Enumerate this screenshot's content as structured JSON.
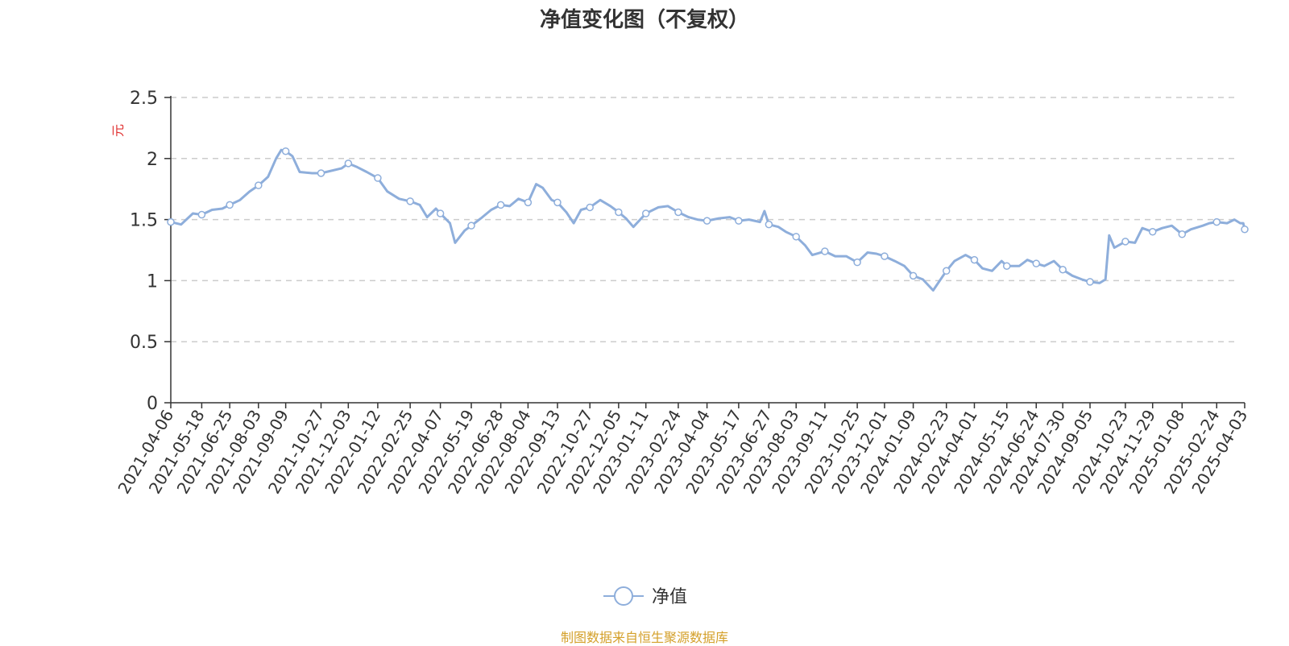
{
  "chart_data": {
    "type": "line",
    "title": "净值变化图（不复权）",
    "ylabel": "元",
    "ylim": [
      0,
      2.5
    ],
    "yticks": [
      "0",
      "0.5",
      "1",
      "1.5",
      "2",
      "2.5"
    ],
    "grid": true,
    "legend_position": "bottom-center",
    "x_start": "2021-04-06",
    "x_end": "2025-04-03",
    "xtick_labels": [
      "2021-04-06",
      "2021-05-18",
      "2021-06-25",
      "2021-08-03",
      "2021-09-09",
      "2021-10-27",
      "2021-12-03",
      "2022-01-12",
      "2022-02-25",
      "2022-04-07",
      "2022-05-19",
      "2022-06-28",
      "2022-08-04",
      "2022-09-13",
      "2022-10-27",
      "2022-12-05",
      "2023-01-11",
      "2023-02-24",
      "2023-04-04",
      "2023-05-17",
      "2023-06-27",
      "2023-08-03",
      "2023-09-11",
      "2023-10-25",
      "2023-12-01",
      "2024-01-09",
      "2024-02-23",
      "2024-04-01",
      "2024-05-15",
      "2024-06-24",
      "2024-07-30",
      "2024-09-05",
      "2024-10-23",
      "2024-11-29",
      "2025-01-08",
      "2025-02-24",
      "2025-04-03"
    ],
    "series": [
      {
        "name": "净值",
        "color": "#8eaedb",
        "points": [
          [
            "2021-04-06",
            1.48
          ],
          [
            "2021-04-20",
            1.46
          ],
          [
            "2021-05-06",
            1.55
          ],
          [
            "2021-05-18",
            1.54
          ],
          [
            "2021-06-01",
            1.58
          ],
          [
            "2021-06-15",
            1.59
          ],
          [
            "2021-06-25",
            1.62
          ],
          [
            "2021-07-09",
            1.66
          ],
          [
            "2021-07-22",
            1.73
          ],
          [
            "2021-08-03",
            1.78
          ],
          [
            "2021-08-16",
            1.85
          ],
          [
            "2021-08-27",
            2.0
          ],
          [
            "2021-09-03",
            2.07
          ],
          [
            "2021-09-09",
            2.06
          ],
          [
            "2021-09-18",
            2.02
          ],
          [
            "2021-09-28",
            1.89
          ],
          [
            "2021-10-15",
            1.88
          ],
          [
            "2021-10-27",
            1.88
          ],
          [
            "2021-11-10",
            1.9
          ],
          [
            "2021-11-24",
            1.92
          ],
          [
            "2021-12-03",
            1.96
          ],
          [
            "2021-12-15",
            1.93
          ],
          [
            "2021-12-28",
            1.89
          ],
          [
            "2022-01-12",
            1.84
          ],
          [
            "2022-01-25",
            1.73
          ],
          [
            "2022-02-10",
            1.67
          ],
          [
            "2022-02-25",
            1.65
          ],
          [
            "2022-03-10",
            1.62
          ],
          [
            "2022-03-20",
            1.52
          ],
          [
            "2022-04-01",
            1.59
          ],
          [
            "2022-04-07",
            1.55
          ],
          [
            "2022-04-20",
            1.47
          ],
          [
            "2022-04-27",
            1.31
          ],
          [
            "2022-05-10",
            1.41
          ],
          [
            "2022-05-19",
            1.45
          ],
          [
            "2022-06-01",
            1.51
          ],
          [
            "2022-06-15",
            1.58
          ],
          [
            "2022-06-28",
            1.62
          ],
          [
            "2022-07-10",
            1.61
          ],
          [
            "2022-07-22",
            1.67
          ],
          [
            "2022-08-04",
            1.64
          ],
          [
            "2022-08-15",
            1.79
          ],
          [
            "2022-08-24",
            1.76
          ],
          [
            "2022-09-05",
            1.66
          ],
          [
            "2022-09-13",
            1.64
          ],
          [
            "2022-09-25",
            1.56
          ],
          [
            "2022-10-05",
            1.47
          ],
          [
            "2022-10-15",
            1.58
          ],
          [
            "2022-10-27",
            1.6
          ],
          [
            "2022-11-10",
            1.66
          ],
          [
            "2022-11-24",
            1.61
          ],
          [
            "2022-12-05",
            1.56
          ],
          [
            "2022-12-15",
            1.51
          ],
          [
            "2022-12-25",
            1.44
          ],
          [
            "2023-01-11",
            1.55
          ],
          [
            "2023-01-28",
            1.6
          ],
          [
            "2023-02-10",
            1.61
          ],
          [
            "2023-02-24",
            1.56
          ],
          [
            "2023-03-10",
            1.52
          ],
          [
            "2023-03-22",
            1.5
          ],
          [
            "2023-04-04",
            1.49
          ],
          [
            "2023-04-20",
            1.51
          ],
          [
            "2023-05-05",
            1.52
          ],
          [
            "2023-05-17",
            1.49
          ],
          [
            "2023-05-31",
            1.5
          ],
          [
            "2023-06-15",
            1.48
          ],
          [
            "2023-06-21",
            1.57
          ],
          [
            "2023-06-27",
            1.46
          ],
          [
            "2023-07-10",
            1.44
          ],
          [
            "2023-07-20",
            1.4
          ],
          [
            "2023-08-03",
            1.36
          ],
          [
            "2023-08-15",
            1.29
          ],
          [
            "2023-08-25",
            1.21
          ],
          [
            "2023-09-11",
            1.24
          ],
          [
            "2023-09-25",
            1.2
          ],
          [
            "2023-10-10",
            1.2
          ],
          [
            "2023-10-25",
            1.15
          ],
          [
            "2023-11-08",
            1.23
          ],
          [
            "2023-11-20",
            1.22
          ],
          [
            "2023-12-01",
            1.2
          ],
          [
            "2023-12-15",
            1.16
          ],
          [
            "2023-12-28",
            1.12
          ],
          [
            "2024-01-09",
            1.04
          ],
          [
            "2024-01-22",
            1.01
          ],
          [
            "2024-02-05",
            0.92
          ],
          [
            "2024-02-23",
            1.08
          ],
          [
            "2024-03-05",
            1.16
          ],
          [
            "2024-03-20",
            1.21
          ],
          [
            "2024-04-01",
            1.17
          ],
          [
            "2024-04-12",
            1.1
          ],
          [
            "2024-04-25",
            1.08
          ],
          [
            "2024-05-08",
            1.16
          ],
          [
            "2024-05-15",
            1.12
          ],
          [
            "2024-06-01",
            1.12
          ],
          [
            "2024-06-12",
            1.17
          ],
          [
            "2024-06-24",
            1.14
          ],
          [
            "2024-07-05",
            1.12
          ],
          [
            "2024-07-18",
            1.16
          ],
          [
            "2024-07-30",
            1.09
          ],
          [
            "2024-08-12",
            1.04
          ],
          [
            "2024-08-25",
            1.01
          ],
          [
            "2024-09-05",
            0.99
          ],
          [
            "2024-09-18",
            0.98
          ],
          [
            "2024-09-26",
            1.01
          ],
          [
            "2024-10-01",
            1.37
          ],
          [
            "2024-10-08",
            1.27
          ],
          [
            "2024-10-23",
            1.32
          ],
          [
            "2024-11-05",
            1.31
          ],
          [
            "2024-11-15",
            1.43
          ],
          [
            "2024-11-29",
            1.4
          ],
          [
            "2024-12-12",
            1.43
          ],
          [
            "2024-12-25",
            1.45
          ],
          [
            "2025-01-08",
            1.38
          ],
          [
            "2025-01-20",
            1.42
          ],
          [
            "2025-02-05",
            1.45
          ],
          [
            "2025-02-14",
            1.47
          ],
          [
            "2025-02-24",
            1.48
          ],
          [
            "2025-03-10",
            1.47
          ],
          [
            "2025-03-20",
            1.5
          ],
          [
            "2025-03-28",
            1.47
          ],
          [
            "2025-04-01",
            1.47
          ],
          [
            "2025-04-03",
            1.42
          ]
        ]
      }
    ]
  },
  "legend": {
    "label": "净值"
  },
  "source_note": "制图数据来自恒生聚源数据库",
  "colors": {
    "line": "#8eaedb",
    "axis": "#333333",
    "grid": "#cccccc",
    "ylabel": "#e03030",
    "source": "#d4a02a"
  }
}
